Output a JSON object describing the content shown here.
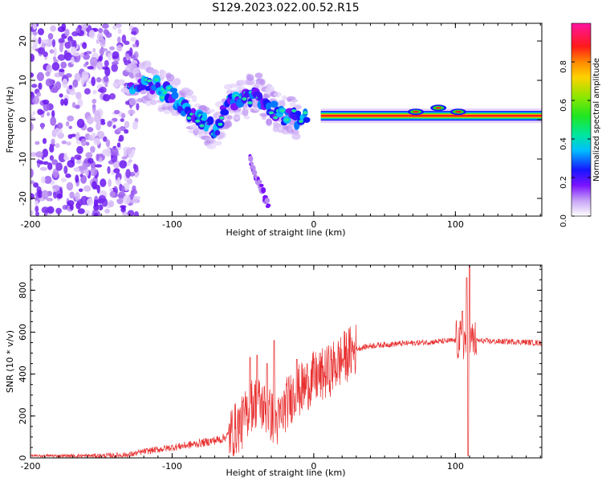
{
  "title": "S129.2023.022.00.52.R15",
  "chart_data": [
    {
      "type": "heatmap",
      "xlabel": "Height of straight line (km)",
      "ylabel": "Frequency (Hz)",
      "xlim": [
        -200,
        161
      ],
      "ylim": [
        -24.5,
        24.5
      ],
      "xticks": [
        -200,
        -100,
        0,
        100
      ],
      "yticks": [
        -20,
        -10,
        0,
        10,
        20
      ],
      "colorbar": {
        "label": "Normalized spectral amplitude",
        "range": [
          0.0,
          1.0
        ],
        "ticks": [
          "0.0",
          "0.2",
          "0.4",
          "0.6",
          "0.8"
        ],
        "colormap": "hsv-like: white → violet → blue → cyan → green → yellow → orange → red → magenta"
      },
      "features": {
        "noise_region_x": [
          -200,
          -130
        ],
        "main_ridge": [
          {
            "x": -130,
            "y": 9
          },
          {
            "x": -120,
            "y": 10
          },
          {
            "x": -110,
            "y": 8
          },
          {
            "x": -100,
            "y": 6
          },
          {
            "x": -90,
            "y": 3
          },
          {
            "x": -80,
            "y": 0
          },
          {
            "x": -70,
            "y": -3
          },
          {
            "x": -60,
            "y": 4
          },
          {
            "x": -50,
            "y": 5
          },
          {
            "x": -40,
            "y": 7
          },
          {
            "x": -30,
            "y": 3
          },
          {
            "x": -20,
            "y": 1
          },
          {
            "x": -10,
            "y": 0
          },
          {
            "x": 0,
            "y": 2
          },
          {
            "x": 10,
            "y": 1
          },
          {
            "x": 50,
            "y": 1
          },
          {
            "x": 100,
            "y": 1
          },
          {
            "x": 161,
            "y": 1
          }
        ],
        "secondary_branch": [
          {
            "x": -45,
            "y": -10
          },
          {
            "x": -40,
            "y": -15
          },
          {
            "x": -32,
            "y": -22
          }
        ]
      }
    },
    {
      "type": "line",
      "xlabel": "Height of straight line (km)",
      "ylabel": "SNR (10 * v/v)",
      "xlim": [
        -200,
        161
      ],
      "ylim": [
        0,
        920
      ],
      "xticks": [
        -200,
        -100,
        0,
        100
      ],
      "yticks": [
        0,
        200,
        400,
        600,
        800
      ],
      "series_color": "#e83030",
      "envelope": [
        {
          "x": -200,
          "y": 10
        },
        {
          "x": -150,
          "y": 10
        },
        {
          "x": -130,
          "y": 15
        },
        {
          "x": -120,
          "y": 30
        },
        {
          "x": -100,
          "y": 50
        },
        {
          "x": -80,
          "y": 70
        },
        {
          "x": -65,
          "y": 90
        },
        {
          "x": -60,
          "y": 110
        },
        {
          "x": -50,
          "y": 170
        },
        {
          "x": -45,
          "y": 250
        },
        {
          "x": -40,
          "y": 270
        },
        {
          "x": -35,
          "y": 240
        },
        {
          "x": -30,
          "y": 200
        },
        {
          "x": -25,
          "y": 170
        },
        {
          "x": -20,
          "y": 250
        },
        {
          "x": -15,
          "y": 300
        },
        {
          "x": -10,
          "y": 320
        },
        {
          "x": -5,
          "y": 350
        },
        {
          "x": 0,
          "y": 380
        },
        {
          "x": 5,
          "y": 390
        },
        {
          "x": 10,
          "y": 410
        },
        {
          "x": 15,
          "y": 440
        },
        {
          "x": 20,
          "y": 470
        },
        {
          "x": 25,
          "y": 500
        },
        {
          "x": 30,
          "y": 520
        },
        {
          "x": 40,
          "y": 535
        },
        {
          "x": 50,
          "y": 540
        },
        {
          "x": 60,
          "y": 545
        },
        {
          "x": 70,
          "y": 548
        },
        {
          "x": 80,
          "y": 552
        },
        {
          "x": 90,
          "y": 556
        },
        {
          "x": 100,
          "y": 560
        },
        {
          "x": 110,
          "y": 560
        },
        {
          "x": 120,
          "y": 558
        },
        {
          "x": 130,
          "y": 555
        },
        {
          "x": 140,
          "y": 555
        },
        {
          "x": 150,
          "y": 552
        },
        {
          "x": 161,
          "y": 548
        }
      ],
      "spikes": [
        {
          "x": -50,
          "y": 270
        },
        {
          "x": -45,
          "y": 480
        },
        {
          "x": -40,
          "y": 490
        },
        {
          "x": -33,
          "y": 450
        },
        {
          "x": -28,
          "y": 560
        },
        {
          "x": -12,
          "y": 470
        },
        {
          "x": 105,
          "y": 700
        },
        {
          "x": 108,
          "y": 860
        },
        {
          "x": 109,
          "y": 10
        },
        {
          "x": 110,
          "y": 920
        }
      ]
    }
  ]
}
